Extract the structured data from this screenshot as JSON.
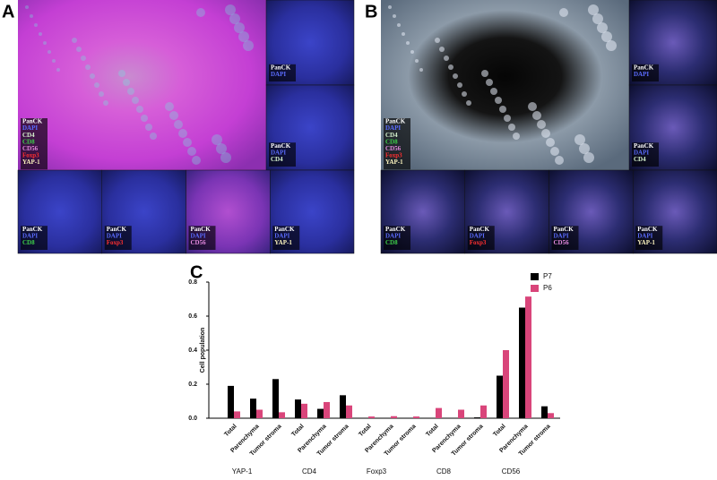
{
  "panels": [
    {
      "letter": "A",
      "main_labels": [
        {
          "text": "PanCK",
          "color": "#ffffff"
        },
        {
          "text": "DAPI",
          "color": "#5b6cff"
        },
        {
          "text": "CD4",
          "color": "#d8f5d0"
        },
        {
          "text": "CD8",
          "color": "#3fd14a"
        },
        {
          "text": "CD56",
          "color": "#e68be0"
        },
        {
          "text": "Foxp3",
          "color": "#ff3030"
        },
        {
          "text": "YAP-1",
          "color": "#fff7c0"
        }
      ],
      "tiles": [
        [
          {
            "text": "PanCK",
            "color": "#ffffff"
          },
          {
            "text": "DAPI",
            "color": "#5b6cff"
          }
        ],
        [
          {
            "text": "PanCK",
            "color": "#ffffff"
          },
          {
            "text": "DAPI",
            "color": "#5b6cff"
          },
          {
            "text": "CD4",
            "color": "#d8f5d0"
          }
        ],
        [
          {
            "text": "PanCK",
            "color": "#ffffff"
          },
          {
            "text": "DAPI",
            "color": "#5b6cff"
          },
          {
            "text": "CD8",
            "color": "#3fd14a"
          }
        ],
        [
          {
            "text": "PanCK",
            "color": "#ffffff"
          },
          {
            "text": "DAPI",
            "color": "#5b6cff"
          },
          {
            "text": "Foxp3",
            "color": "#ff3030"
          }
        ],
        [
          {
            "text": "PanCK",
            "color": "#ffffff"
          },
          {
            "text": "DAPI",
            "color": "#5b6cff"
          },
          {
            "text": "CD56",
            "color": "#e68be0"
          }
        ],
        [
          {
            "text": "PanCK",
            "color": "#ffffff"
          },
          {
            "text": "DAPI",
            "color": "#5b6cff"
          },
          {
            "text": "YAP-1",
            "color": "#fff7c0"
          }
        ]
      ]
    },
    {
      "letter": "B",
      "main_labels": [
        {
          "text": "PanCK",
          "color": "#ffffff"
        },
        {
          "text": "DAPI",
          "color": "#5b6cff"
        },
        {
          "text": "CD4",
          "color": "#d8f5d0"
        },
        {
          "text": "CD8",
          "color": "#3fd14a"
        },
        {
          "text": "CD56",
          "color": "#e68be0"
        },
        {
          "text": "Foxp3",
          "color": "#ff3030"
        },
        {
          "text": "YAP-1",
          "color": "#fff7c0"
        }
      ],
      "tiles": [
        [
          {
            "text": "PanCK",
            "color": "#ffffff"
          },
          {
            "text": "DAPI",
            "color": "#5b6cff"
          }
        ],
        [
          {
            "text": "PanCK",
            "color": "#ffffff"
          },
          {
            "text": "DAPI",
            "color": "#5b6cff"
          },
          {
            "text": "CD4",
            "color": "#d8f5d0"
          }
        ],
        [
          {
            "text": "PanCK",
            "color": "#ffffff"
          },
          {
            "text": "DAPI",
            "color": "#5b6cff"
          },
          {
            "text": "CD8",
            "color": "#3fd14a"
          }
        ],
        [
          {
            "text": "PanCK",
            "color": "#ffffff"
          },
          {
            "text": "DAPI",
            "color": "#5b6cff"
          },
          {
            "text": "Foxp3",
            "color": "#ff3030"
          }
        ],
        [
          {
            "text": "PanCK",
            "color": "#ffffff"
          },
          {
            "text": "DAPI",
            "color": "#5b6cff"
          },
          {
            "text": "CD56",
            "color": "#e68be0"
          }
        ],
        [
          {
            "text": "PanCK",
            "color": "#ffffff"
          },
          {
            "text": "DAPI",
            "color": "#5b6cff"
          },
          {
            "text": "YAP-1",
            "color": "#fff7c0"
          }
        ]
      ]
    }
  ],
  "chart_data": {
    "type": "bar",
    "letter": "C",
    "ylabel": "Cell population",
    "categories": [
      "Total",
      "Parenchyma",
      "Tumor stroma",
      "Total",
      "Parenchyma",
      "Tumor stroma",
      "Total",
      "Parenchyma",
      "Tumor stroma",
      "Total",
      "Parenchyma",
      "Tumor stroma",
      "Total",
      "Parenchyma",
      "Tumor stroma"
    ],
    "groups": [
      "YAP-1",
      "CD4",
      "Foxp3",
      "CD8",
      "CD56"
    ],
    "series": [
      {
        "name": "P7",
        "color": "#000000",
        "values": [
          0.19,
          0.115,
          0.23,
          0.11,
          0.055,
          0.135,
          0,
          0,
          0,
          0,
          0,
          0.005,
          0.25,
          0.65,
          0.07
        ]
      },
      {
        "name": "P6",
        "color": "#d9457a",
        "values": [
          0.04,
          0.05,
          0.035,
          0.085,
          0.095,
          0.075,
          0.01,
          0.012,
          0.01,
          0.06,
          0.05,
          0.075,
          0.4,
          0.715,
          0.03
        ]
      }
    ],
    "ylim": [
      0,
      0.8
    ],
    "yticks": [
      {
        "value": 0,
        "label": "0.0"
      },
      0.2,
      0.4,
      0.6,
      0.8
    ],
    "legend": "top-right"
  }
}
